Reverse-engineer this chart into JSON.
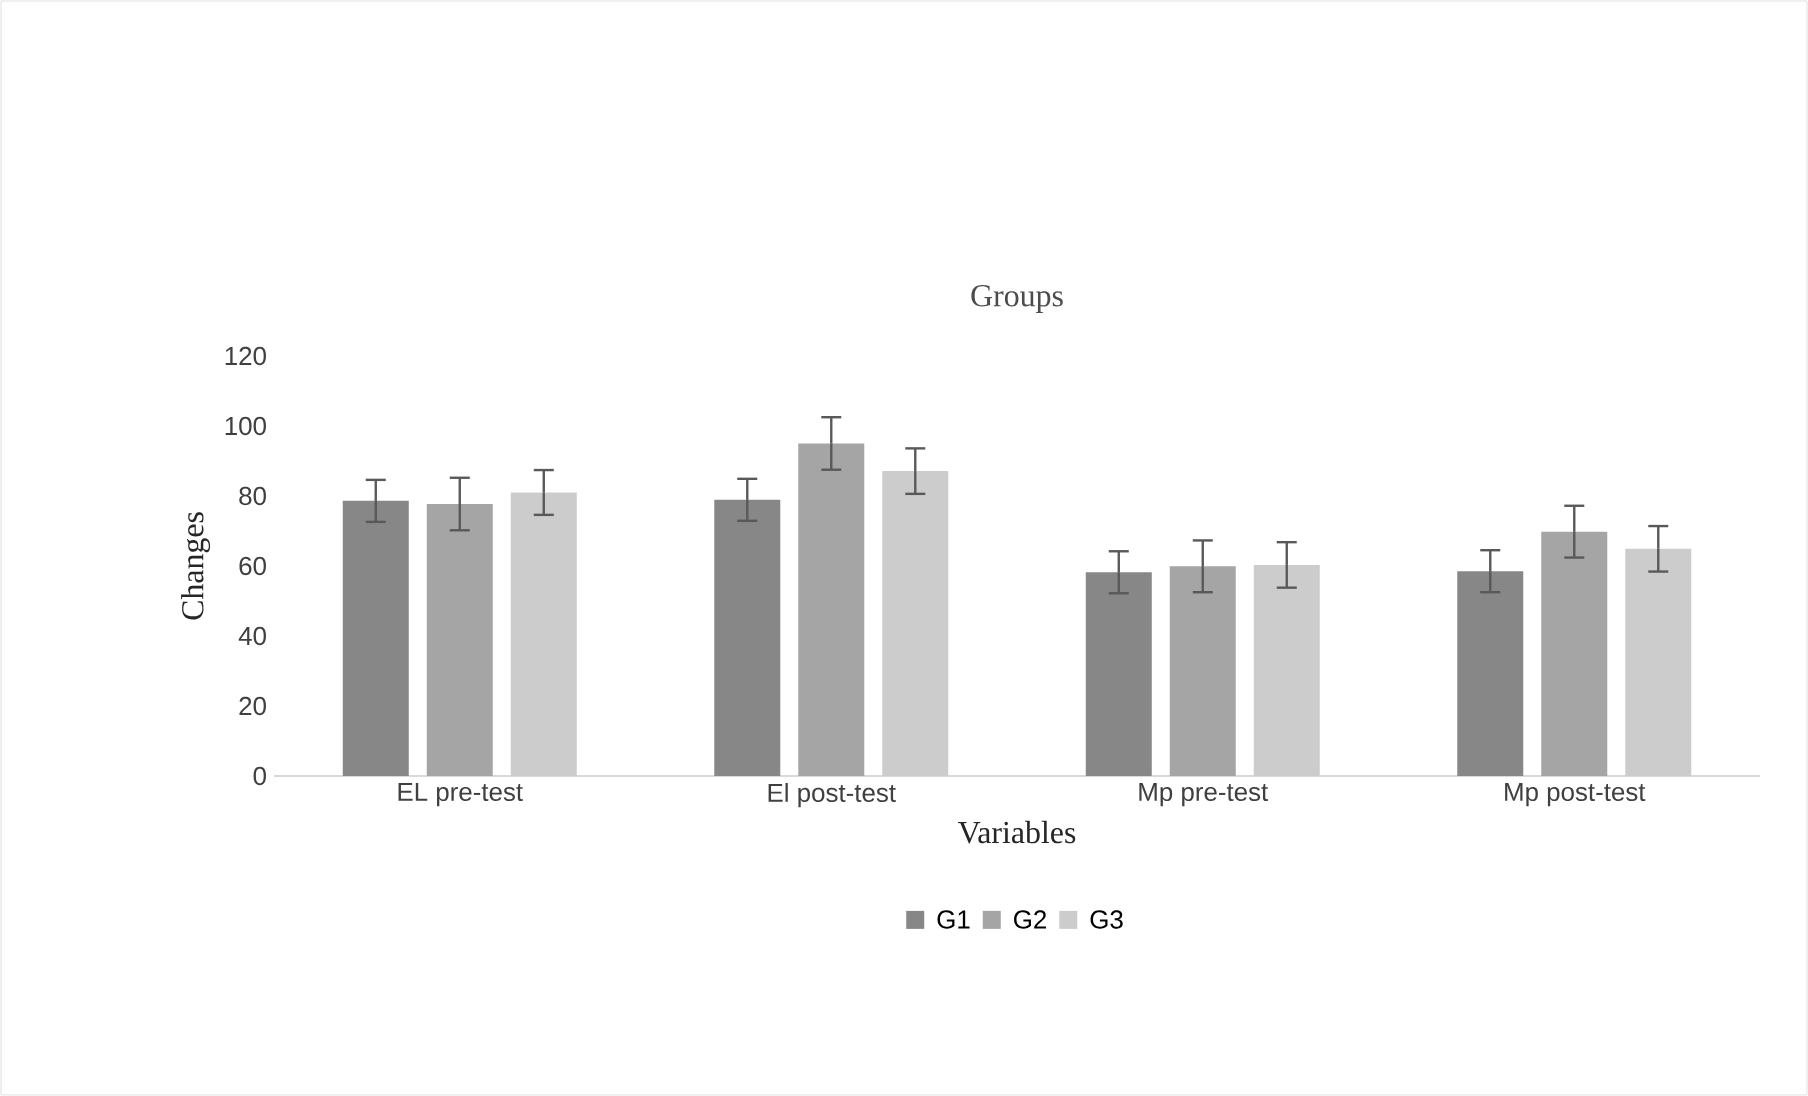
{
  "chart_data": {
    "type": "bar",
    "title": "Groups",
    "xlabel": "Variables",
    "ylabel": "Changes",
    "categories": [
      "EL pre-test",
      "El post-test",
      "Mp pre-test",
      "Mp post-test"
    ],
    "series": [
      {
        "name": "G1",
        "color": "#878787",
        "values": [
          78.6,
          78.9,
          58.2,
          58.5
        ],
        "errors": [
          6,
          6,
          6,
          6
        ]
      },
      {
        "name": "G2",
        "color": "#a5a5a5",
        "values": [
          77.7,
          95.0,
          59.9,
          69.8
        ],
        "errors": [
          7.5,
          7.5,
          7.4,
          7.4
        ]
      },
      {
        "name": "G3",
        "color": "#cccccc",
        "values": [
          81.0,
          87.1,
          60.3,
          64.9
        ],
        "errors": [
          6.4,
          6.5,
          6.5,
          6.5
        ]
      }
    ],
    "ylim": [
      0,
      120
    ],
    "yticks": [
      0,
      20,
      40,
      60,
      80,
      100,
      120
    ],
    "legend": "bottom"
  }
}
